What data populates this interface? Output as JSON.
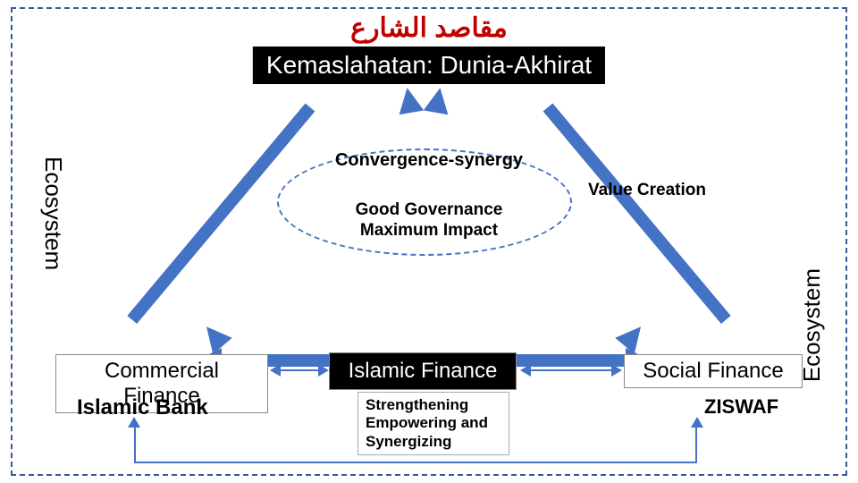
{
  "diagram": {
    "type": "infographic",
    "background_color": "#ffffff",
    "border_color": "#3b5998",
    "arrow_color": "#4472c4",
    "ellipse_border": "#4472c4",
    "title_arabic": "مقاصد الشارع",
    "title_arabic_color": "#c00000",
    "title_arabic_fontsize": 30,
    "subtitle": "Kemaslahatan: Dunia-Akhirat",
    "subtitle_bg": "#000000",
    "subtitle_color": "#ffffff",
    "subtitle_fontsize": 28,
    "ecosystem_left": "Ecosystem",
    "ecosystem_right": "Ecosystem",
    "ecosystem_fontsize": 26,
    "convergence": "Convergence-synergy",
    "governance_line1": "Good Governance",
    "governance_line2": "Maximum Impact",
    "value_creation": "Value Creation",
    "center_fontsize": 20,
    "bottom": {
      "commercial": "Commercial Finance",
      "islamic": "Islamic Finance",
      "social": "Social Finance",
      "box_fontsize": 24,
      "islamic_bg": "#000000",
      "islamic_color": "#ffffff"
    },
    "islamic_bank": "Islamic Bank",
    "ziswaf": "ZISWAF",
    "sub_fontsize": 24,
    "strengthen_line1": "Strengthening",
    "strengthen_line2": "Empowering and",
    "strengthen_line3": "Synergizing",
    "strengthen_fontsize": 17
  }
}
